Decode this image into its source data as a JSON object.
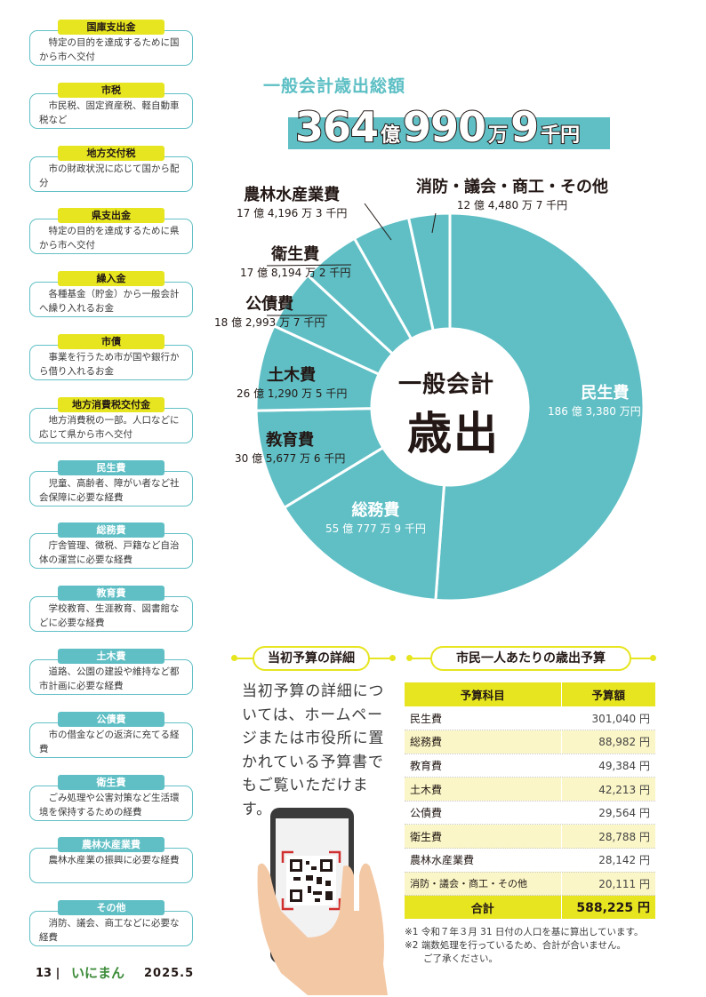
{
  "glossary": [
    {
      "term": "国庫支出金",
      "desc": "特定の目的を達成するために国から市へ交付",
      "tag": "y"
    },
    {
      "term": "市税",
      "desc": "市民税、固定資産税、軽自動車税など",
      "tag": "y"
    },
    {
      "term": "地方交付税",
      "desc": "市の財政状況に応じて国から配分",
      "tag": "y"
    },
    {
      "term": "県支出金",
      "desc": "特定の目的を達成するために県から市へ交付",
      "tag": "y"
    },
    {
      "term": "繰入金",
      "desc": "各種基金（貯金）から一般会計へ繰り入れるお金",
      "tag": "y"
    },
    {
      "term": "市債",
      "desc": "事業を行うため市が国や銀行から借り入れるお金",
      "tag": "y"
    },
    {
      "term": "地方消費税交付金",
      "desc": "地方消費税の一部。人口などに応じて県から市へ交付",
      "tag": "y"
    },
    {
      "term": "民生費",
      "desc": "児童、高齢者、障がい者など社会保障に必要な経費",
      "tag": "t"
    },
    {
      "term": "総務費",
      "desc": "庁舎管理、徴税、戸籍など自治体の運営に必要な経費",
      "tag": "t"
    },
    {
      "term": "教育費",
      "desc": "学校教育、生涯教育、図書館などに必要な経費",
      "tag": "t"
    },
    {
      "term": "土木費",
      "desc": "道路、公園の建設や維持など都市計画に必要な経費",
      "tag": "t"
    },
    {
      "term": "公債費",
      "desc": "市の借金などの返済に充てる経費",
      "tag": "t"
    },
    {
      "term": "衛生費",
      "desc": "ごみ処理や公害対策など生活環境を保持するための経費",
      "tag": "t"
    },
    {
      "term": "農林水産業費",
      "desc": "農林水産業の振興に必要な経費",
      "tag": "t"
    },
    {
      "term": "その他",
      "desc": "消防、議会、商工などに必要な経費",
      "tag": "t"
    }
  ],
  "headline": {
    "title": "一般会計歳出総額",
    "num1": "364",
    "unit1": "億",
    "num2": "990",
    "unit2": "万",
    "num3": "9",
    "unit3": "千円"
  },
  "chart_data": {
    "type": "pie",
    "title": "一般会計歳出",
    "center_line1": "一般会計",
    "center_line2": "歳出",
    "unit": "万円",
    "slices": [
      {
        "name": "民生費",
        "value_label": "186 億 3,380 万円",
        "value": 1863380
      },
      {
        "name": "総務費",
        "value_label": "55 億 777 万 9 千円",
        "value": 550779
      },
      {
        "name": "教育費",
        "value_label": "30 億 5,677 万 6 千円",
        "value": 305678
      },
      {
        "name": "土木費",
        "value_label": "26 億 1,290 万 5 千円",
        "value": 261291
      },
      {
        "name": "公債費",
        "value_label": "18 億 2,993 万 7 千円",
        "value": 182994
      },
      {
        "name": "衛生費",
        "value_label": "17 億 8,194 万 2 千円",
        "value": 178194
      },
      {
        "name": "農林水産業費",
        "value_label": "17 億 4,196 万 3 千円",
        "value": 174196
      },
      {
        "name": "消防・議会・商工・その他",
        "value_label": "12 億 4,480 万 7 千円",
        "value": 124481
      }
    ],
    "color": "#5fbfc5"
  },
  "detail": {
    "heading": "当初予算の詳細",
    "text": "当初予算の詳細については、ホームページまたは市役所に置かれている予算書でもご覧いただけます。"
  },
  "per_capita": {
    "heading": "市民一人あたりの歳出予算",
    "col_item": "予算科目",
    "col_amount": "予算額",
    "rows": [
      {
        "item": "民生費",
        "amount": "301,040 円"
      },
      {
        "item": "総務費",
        "amount": "88,982 円"
      },
      {
        "item": "教育費",
        "amount": "49,384 円"
      },
      {
        "item": "土木費",
        "amount": "42,213 円"
      },
      {
        "item": "公債費",
        "amount": "29,564 円"
      },
      {
        "item": "衛生費",
        "amount": "28,788 円"
      },
      {
        "item": "農林水産業費",
        "amount": "28,142 円"
      },
      {
        "item": "消防・議会・商工・その他",
        "amount": "20,111 円"
      }
    ],
    "total_label": "合計",
    "total_amount": "588,225 円",
    "notes": [
      "※1 令和７年３月 31 日付の人口を基に算出しています。",
      "※2 端数処理を行っているため、合計が合いません。",
      "　　ご了承ください。"
    ]
  },
  "footer": {
    "page": "13",
    "brand": "いにまん",
    "issue": "2025.5"
  }
}
